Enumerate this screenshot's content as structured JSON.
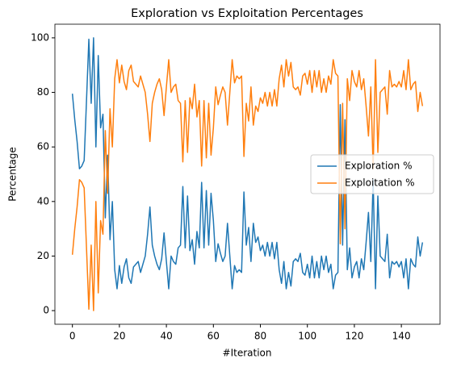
{
  "chart_data": {
    "type": "line",
    "title": "Exploration vs Exploitation Percentages",
    "x_label": "#Iteration",
    "y_label": "Percentage",
    "x": [
      0,
      1,
      2,
      3,
      4,
      5,
      6,
      7,
      8,
      9,
      10,
      11,
      12,
      13,
      14,
      15,
      16,
      17,
      18,
      19,
      20,
      21,
      22,
      23,
      24,
      25,
      26,
      27,
      28,
      29,
      30,
      31,
      32,
      33,
      34,
      35,
      36,
      37,
      38,
      39,
      40,
      41,
      42,
      43,
      44,
      45,
      46,
      47,
      48,
      49,
      50,
      51,
      52,
      53,
      54,
      55,
      56,
      57,
      58,
      59,
      60,
      61,
      62,
      63,
      64,
      65,
      66,
      67,
      68,
      69,
      70,
      71,
      72,
      73,
      74,
      75,
      76,
      77,
      78,
      79,
      80,
      81,
      82,
      83,
      84,
      85,
      86,
      87,
      88,
      89,
      90,
      91,
      92,
      93,
      94,
      95,
      96,
      97,
      98,
      99,
      100,
      101,
      102,
      103,
      104,
      105,
      106,
      107,
      108,
      109,
      110,
      111,
      112,
      113,
      114,
      115,
      116,
      117,
      118,
      119,
      120,
      121,
      122,
      123,
      124,
      125,
      126,
      127,
      128,
      129,
      130,
      131,
      132,
      133,
      134,
      135,
      136,
      137,
      138,
      139,
      140,
      141,
      142,
      143,
      144,
      145,
      146,
      147,
      148,
      149
    ],
    "series": [
      {
        "name": "Exploration %",
        "color": "#1f77b4",
        "values": [
          79.5,
          70,
          62,
          52,
          53,
          55,
          77,
          99.5,
          76,
          100,
          60,
          93.5,
          67,
          72,
          34,
          57,
          26,
          40,
          15,
          8,
          16.5,
          10,
          16,
          19,
          12,
          10,
          16,
          17,
          18,
          14,
          17,
          20,
          28,
          38,
          24,
          20,
          17,
          15,
          19,
          28.5,
          18,
          8,
          20,
          18,
          17,
          23,
          24,
          45.5,
          23,
          42,
          22,
          26,
          17,
          29,
          23,
          47,
          23,
          44,
          24,
          43,
          33,
          18,
          24.5,
          21,
          18,
          20,
          32,
          20,
          8,
          16.5,
          14,
          15,
          14,
          43.5,
          24,
          30.5,
          18,
          32,
          25,
          27,
          22,
          24,
          20,
          25,
          20,
          25,
          19,
          25,
          15,
          10,
          18,
          8,
          14,
          9,
          18,
          19,
          18,
          21,
          14,
          13,
          17,
          12,
          20,
          12,
          18,
          12,
          20,
          15,
          20,
          14,
          17,
          8,
          13,
          14,
          75.5,
          24,
          70,
          15,
          23,
          12,
          16,
          18,
          12,
          19,
          15,
          25,
          36,
          18,
          48,
          8,
          42,
          20,
          19,
          18,
          28,
          12,
          18,
          17,
          18,
          16,
          18,
          12,
          19,
          8,
          19,
          17,
          16,
          27,
          20,
          25
        ]
      },
      {
        "name": "Exploitation %",
        "color": "#ff7f0e",
        "values": [
          20.5,
          30,
          38,
          48,
          47,
          45,
          23,
          0.5,
          24,
          0,
          40,
          6.5,
          33,
          28,
          66,
          43,
          74,
          60,
          85,
          92,
          83.5,
          90,
          84,
          81,
          88,
          90,
          84,
          83,
          82,
          86,
          83,
          80,
          72,
          62,
          76,
          80,
          83,
          85,
          81,
          71.5,
          82,
          92,
          80,
          82,
          83,
          77,
          76,
          54.5,
          77,
          58,
          78,
          74,
          83,
          71,
          77,
          53,
          77,
          56,
          76,
          57,
          67,
          82,
          75.5,
          79,
          82,
          80,
          68,
          80,
          92,
          83.5,
          86,
          85,
          86,
          56.5,
          76,
          69.5,
          82,
          68,
          75,
          73,
          78,
          76,
          80,
          75,
          80,
          75,
          81,
          75,
          85,
          90,
          82,
          92,
          86,
          91,
          82,
          81,
          82,
          79,
          86,
          87,
          83,
          88,
          80,
          88,
          82,
          88,
          80,
          85,
          80,
          86,
          83,
          92,
          87,
          86,
          24.5,
          76,
          30,
          85,
          77,
          88,
          84,
          82,
          88,
          81,
          85,
          75,
          64,
          82,
          52,
          92,
          58,
          80,
          81,
          82,
          72,
          88,
          82,
          83,
          82,
          84,
          82,
          88,
          81,
          92,
          81,
          83,
          84,
          73,
          80,
          75
        ]
      }
    ],
    "xlim": [
      -7.45,
      156.45
    ],
    "xticks": [
      0,
      20,
      40,
      60,
      80,
      100,
      120,
      140
    ],
    "ylim": [
      -5,
      105
    ],
    "yticks": [
      0,
      20,
      40,
      60,
      80,
      100
    ],
    "grid": false,
    "legend": "center right"
  }
}
